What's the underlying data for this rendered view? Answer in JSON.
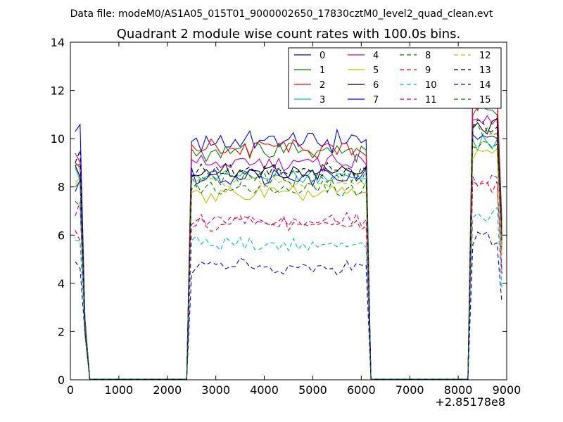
{
  "chart_data": {
    "type": "line",
    "suptitle": "Data file: modeM0/AS1A05_015T01_9000002650_17830cztM0_level2_quad_clean.evt",
    "title": "Quadrant 2 module wise count rates with 100.0s bins.",
    "xlabel": "",
    "ylabel": "",
    "x_offset_label": "+2.85178e8",
    "xlim": [
      0,
      9000
    ],
    "ylim": [
      0,
      14
    ],
    "x_ticks": [
      0,
      1000,
      2000,
      3000,
      4000,
      5000,
      6000,
      7000,
      8000,
      9000
    ],
    "x_tick_labels": [
      "0",
      "1000",
      "2000",
      "3000",
      "4000",
      "5000",
      "6000",
      "7000",
      "8000",
      "9000"
    ],
    "y_ticks": [
      0,
      2,
      4,
      6,
      8,
      10,
      12,
      14
    ],
    "y_tick_labels": [
      "0",
      "2",
      "4",
      "6",
      "8",
      "10",
      "12",
      "14"
    ],
    "legend_position": "top-right",
    "x": [
      100,
      200,
      300,
      400,
      500,
      600,
      700,
      800,
      900,
      1000,
      1100,
      1200,
      1300,
      1400,
      1500,
      1600,
      1700,
      1800,
      1900,
      2000,
      2100,
      2200,
      2300,
      2400,
      2500,
      2600,
      2700,
      2800,
      2900,
      3000,
      3100,
      3200,
      3300,
      3400,
      3500,
      3600,
      3700,
      3800,
      3900,
      4000,
      4100,
      4200,
      4300,
      4400,
      4500,
      4600,
      4700,
      4800,
      4900,
      5000,
      5100,
      5200,
      5300,
      5400,
      5500,
      5600,
      5700,
      5800,
      5900,
      6000,
      6100,
      6200,
      6300,
      6400,
      6500,
      6600,
      6700,
      6800,
      6900,
      7000,
      7100,
      7200,
      7300,
      7400,
      7500,
      7600,
      7700,
      7800,
      7900,
      8000,
      8100,
      8200,
      8300,
      8400,
      8500,
      8600,
      8700,
      8800,
      8900
    ],
    "series": [
      {
        "name": "0",
        "color": "#0000ff",
        "dash": "solid",
        "mean": 9.9,
        "start": 10.3,
        "amp": 0.35,
        "late": 12.0
      },
      {
        "name": "1",
        "color": "#008000",
        "dash": "solid",
        "mean": 9.5,
        "start": 8.9,
        "amp": 0.3,
        "late": 11.3
      },
      {
        "name": "2",
        "color": "#ff0000",
        "dash": "solid",
        "mean": 9.6,
        "start": 9.0,
        "amp": 0.3,
        "late": 11.5
      },
      {
        "name": "3",
        "color": "#00bfbf",
        "dash": "solid",
        "mean": 8.4,
        "start": 8.8,
        "amp": 0.25,
        "late": 9.8
      },
      {
        "name": "4",
        "color": "#bf00bf",
        "dash": "solid",
        "mean": 9.0,
        "start": 9.4,
        "amp": 0.3,
        "late": 10.8
      },
      {
        "name": "5",
        "color": "#bfbf00",
        "dash": "solid",
        "mean": 7.7,
        "start": 8.2,
        "amp": 0.25,
        "late": 9.4
      },
      {
        "name": "6",
        "color": "#000000",
        "dash": "solid",
        "mean": 8.6,
        "start": 8.9,
        "amp": 0.25,
        "late": 10.5
      },
      {
        "name": "7",
        "color": "#0000ff",
        "dash": "solid",
        "mean": 8.4,
        "start": 7.8,
        "amp": 0.3,
        "late": 10.2
      },
      {
        "name": "8",
        "color": "#008000",
        "dash": "dashed",
        "mean": 7.9,
        "start": 7.4,
        "amp": 0.25,
        "late": 9.6
      },
      {
        "name": "9",
        "color": "#ff0000",
        "dash": "dashed",
        "mean": 6.5,
        "start": 6.2,
        "amp": 0.25,
        "late": 8.0
      },
      {
        "name": "10",
        "color": "#00bfbf",
        "dash": "dashed",
        "mean": 5.6,
        "start": 5.8,
        "amp": 0.25,
        "late": 6.9
      },
      {
        "name": "11",
        "color": "#bf00bf",
        "dash": "dashed",
        "mean": 6.6,
        "start": 6.8,
        "amp": 0.25,
        "late": 8.2
      },
      {
        "name": "12",
        "color": "#bfbf00",
        "dash": "dashed",
        "mean": 8.2,
        "start": 8.1,
        "amp": 0.25,
        "late": 9.9
      },
      {
        "name": "13",
        "color": "#000000",
        "dash": "dashed",
        "mean": 8.7,
        "start": 9.0,
        "amp": 0.25,
        "late": 10.6
      },
      {
        "name": "14",
        "color": "#0000ff",
        "dash": "dashed",
        "mean": 4.7,
        "start": 4.9,
        "amp": 0.25,
        "late": 5.8
      },
      {
        "name": "15",
        "color": "#008000",
        "dash": "dashed",
        "mean": 8.4,
        "start": 8.0,
        "amp": 0.3,
        "late": 10.3
      }
    ]
  }
}
